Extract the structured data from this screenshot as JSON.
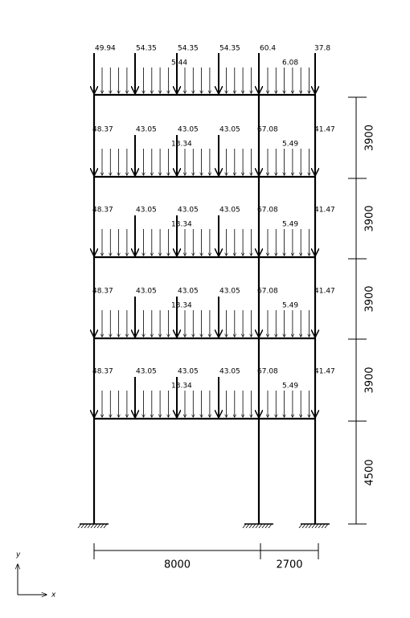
{
  "levels": [
    {
      "point_loads": [
        49.94,
        54.35,
        54.35,
        54.35,
        60.4,
        37.8
      ],
      "distributed_loads": [
        5.44,
        6.08
      ]
    },
    {
      "point_loads": [
        48.37,
        43.05,
        43.05,
        43.05,
        67.08,
        41.47
      ],
      "distributed_loads": [
        13.34,
        5.49
      ]
    },
    {
      "point_loads": [
        48.37,
        43.05,
        43.05,
        43.05,
        67.08,
        41.47
      ],
      "distributed_loads": [
        13.34,
        5.49
      ]
    },
    {
      "point_loads": [
        48.37,
        43.05,
        43.05,
        43.05,
        67.08,
        41.47
      ],
      "distributed_loads": [
        13.34,
        5.49
      ]
    },
    {
      "point_loads": [
        48.37,
        43.05,
        43.05,
        43.05,
        67.08,
        41.47
      ],
      "distributed_loads": [
        13.34,
        5.49
      ]
    }
  ],
  "story_heights": [
    3900,
    3900,
    3900,
    3900,
    4500
  ],
  "spans": [
    8000,
    2700
  ],
  "axes": {
    "x": "x",
    "y": "y"
  }
}
